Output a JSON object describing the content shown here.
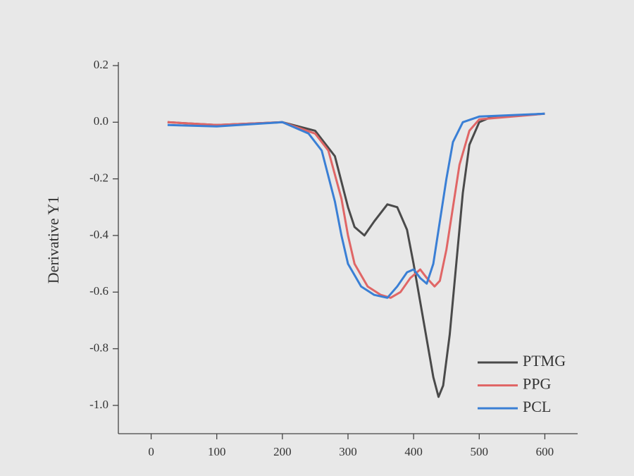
{
  "chart_data": {
    "type": "line",
    "y_label": "Derivative Y1",
    "xlim": [
      -50,
      650
    ],
    "xticks": [
      0,
      100,
      200,
      300,
      400,
      500,
      600
    ],
    "ylim": [
      -1.1,
      0.2
    ],
    "yticks": [
      0.2,
      {
        "value": 0,
        "label": "0.0"
      },
      -0.2,
      -0.4,
      -0.6,
      -0.8,
      {
        "value": -1,
        "label": "-1.0"
      }
    ],
    "legend": "lower right",
    "series": [
      {
        "name": "PTMG",
        "color": "#4a4a4a",
        "x": [
          25,
          100,
          200,
          250,
          280,
          300,
          310,
          325,
          340,
          360,
          375,
          390,
          400,
          415,
          430,
          438,
          445,
          455,
          465,
          475,
          485,
          500,
          520,
          600
        ],
        "values": [
          0,
          -0.01,
          0,
          -0.03,
          -0.12,
          -0.3,
          -0.37,
          -0.4,
          -0.35,
          -0.29,
          -0.3,
          -0.38,
          -0.5,
          -0.7,
          -0.9,
          -0.97,
          -0.93,
          -0.75,
          -0.5,
          -0.25,
          -0.08,
          0,
          0.02,
          0.03
        ]
      },
      {
        "name": "PPG",
        "color": "#e06666",
        "x": [
          25,
          100,
          200,
          250,
          270,
          290,
          300,
          310,
          330,
          350,
          365,
          380,
          395,
          410,
          420,
          432,
          440,
          450,
          460,
          470,
          485,
          500,
          600
        ],
        "values": [
          0,
          -0.01,
          0,
          -0.04,
          -0.1,
          -0.27,
          -0.4,
          -0.5,
          -0.58,
          -0.61,
          -0.62,
          -0.6,
          -0.55,
          -0.52,
          -0.55,
          -0.58,
          -0.56,
          -0.45,
          -0.3,
          -0.15,
          -0.03,
          0.01,
          0.03
        ]
      },
      {
        "name": "PCL",
        "color": "#3a7fd5",
        "x": [
          25,
          100,
          200,
          240,
          260,
          280,
          290,
          300,
          320,
          340,
          360,
          375,
          390,
          400,
          410,
          420,
          430,
          440,
          450,
          460,
          475,
          500,
          600
        ],
        "values": [
          -0.01,
          -0.015,
          0,
          -0.04,
          -0.1,
          -0.28,
          -0.4,
          -0.5,
          -0.58,
          -0.61,
          -0.62,
          -0.58,
          -0.53,
          -0.52,
          -0.55,
          -0.57,
          -0.5,
          -0.35,
          -0.2,
          -0.07,
          0,
          0.02,
          0.03
        ]
      }
    ]
  }
}
